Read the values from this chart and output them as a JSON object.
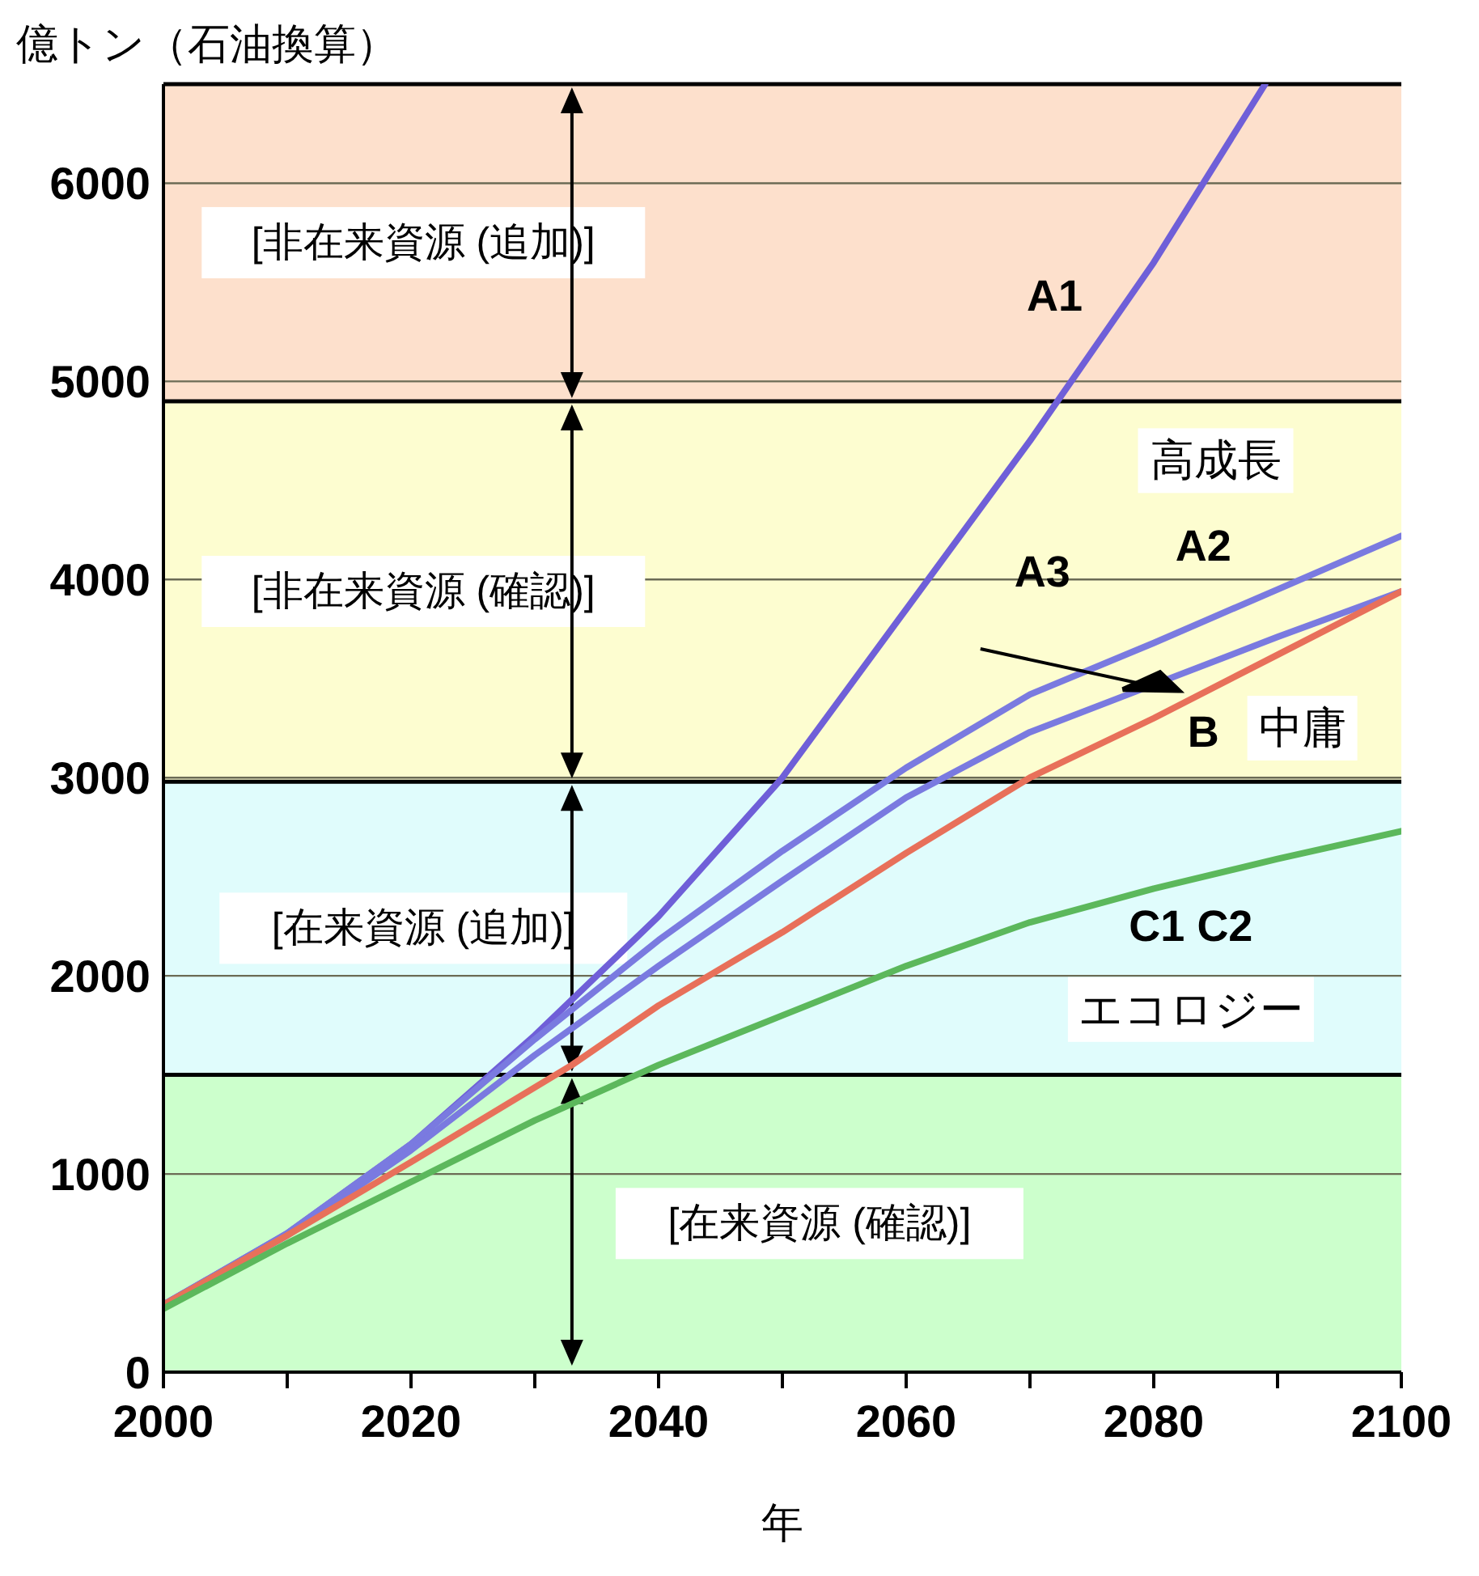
{
  "chart_data": {
    "type": "line",
    "xlabel": "年",
    "ylabel": "億トン（石油換算）",
    "xlim": [
      2000,
      2100
    ],
    "xticks": [
      2000,
      {
        "value": 2010,
        "label": null
      },
      2020,
      {
        "value": 2030,
        "label": null
      },
      2040,
      {
        "value": 2050,
        "label": null
      },
      2060,
      {
        "value": 2070,
        "label": null
      },
      2080,
      {
        "value": 2090,
        "label": null
      },
      2100
    ],
    "ylim": [
      0,
      6500
    ],
    "yticks": [
      0,
      1000,
      2000,
      3000,
      4000,
      5000,
      6000
    ],
    "grid": "y",
    "series": [
      {
        "color": "#6f5fd8",
        "x": [
          2000,
          2010,
          2020,
          2030,
          2040,
          2050,
          2060,
          2070,
          2080,
          2089
        ],
        "values": [
          340,
          700,
          1150,
          1700,
          2300,
          3000,
          3850,
          4700,
          5600,
          6500
        ]
      },
      {
        "color": "#7a7ae0",
        "x": [
          2000,
          2010,
          2020,
          2030,
          2040,
          2050,
          2060,
          2070,
          2080,
          2090,
          2100
        ],
        "values": [
          340,
          700,
          1150,
          1680,
          2180,
          2630,
          3050,
          3420,
          3680,
          3950,
          4220
        ]
      },
      {
        "color": "#7a7ae0",
        "x": [
          2000,
          2010,
          2020,
          2030,
          2040,
          2050,
          2060,
          2070,
          2080,
          2090,
          2100
        ],
        "values": [
          340,
          690,
          1120,
          1600,
          2050,
          2480,
          2900,
          3230,
          3470,
          3710,
          3940
        ]
      },
      {
        "color": "#e8705a",
        "x": [
          2000,
          2010,
          2020,
          2033,
          2040,
          2050,
          2060,
          2070,
          2080,
          2090,
          2100
        ],
        "values": [
          340,
          690,
          1060,
          1550,
          1850,
          2220,
          2620,
          3000,
          3300,
          3620,
          3940
        ]
      },
      {
        "color": "#5cb85c",
        "x": [
          2000,
          2010,
          2020,
          2030,
          2040,
          2050,
          2060,
          2070,
          2080,
          2090,
          2100
        ],
        "values": [
          320,
          650,
          960,
          1270,
          1550,
          1800,
          2050,
          2270,
          2440,
          2590,
          2730
        ]
      }
    ],
    "bands": [
      {
        "axis": "y",
        "from": 0,
        "to": 1500,
        "label": "[在来資源 (確認)]",
        "color": "#ccffcc"
      },
      {
        "axis": "y",
        "from": 1500,
        "to": 2980,
        "label": "[在来資源 (追加)]",
        "color": "#e0fcfc"
      },
      {
        "axis": "y",
        "from": 2980,
        "to": 4900,
        "label": "[非在来資源 (確認)]",
        "color": "#fdfdd0"
      },
      {
        "axis": "y",
        "from": 4900,
        "to": 6500,
        "label": "[非在来資源 (追加)]",
        "color": "#fde0cc"
      }
    ],
    "annotations": [
      "A1",
      "高成長",
      "A2",
      "A3",
      "B",
      "中庸",
      "C1 C2",
      "エコロジー"
    ]
  }
}
